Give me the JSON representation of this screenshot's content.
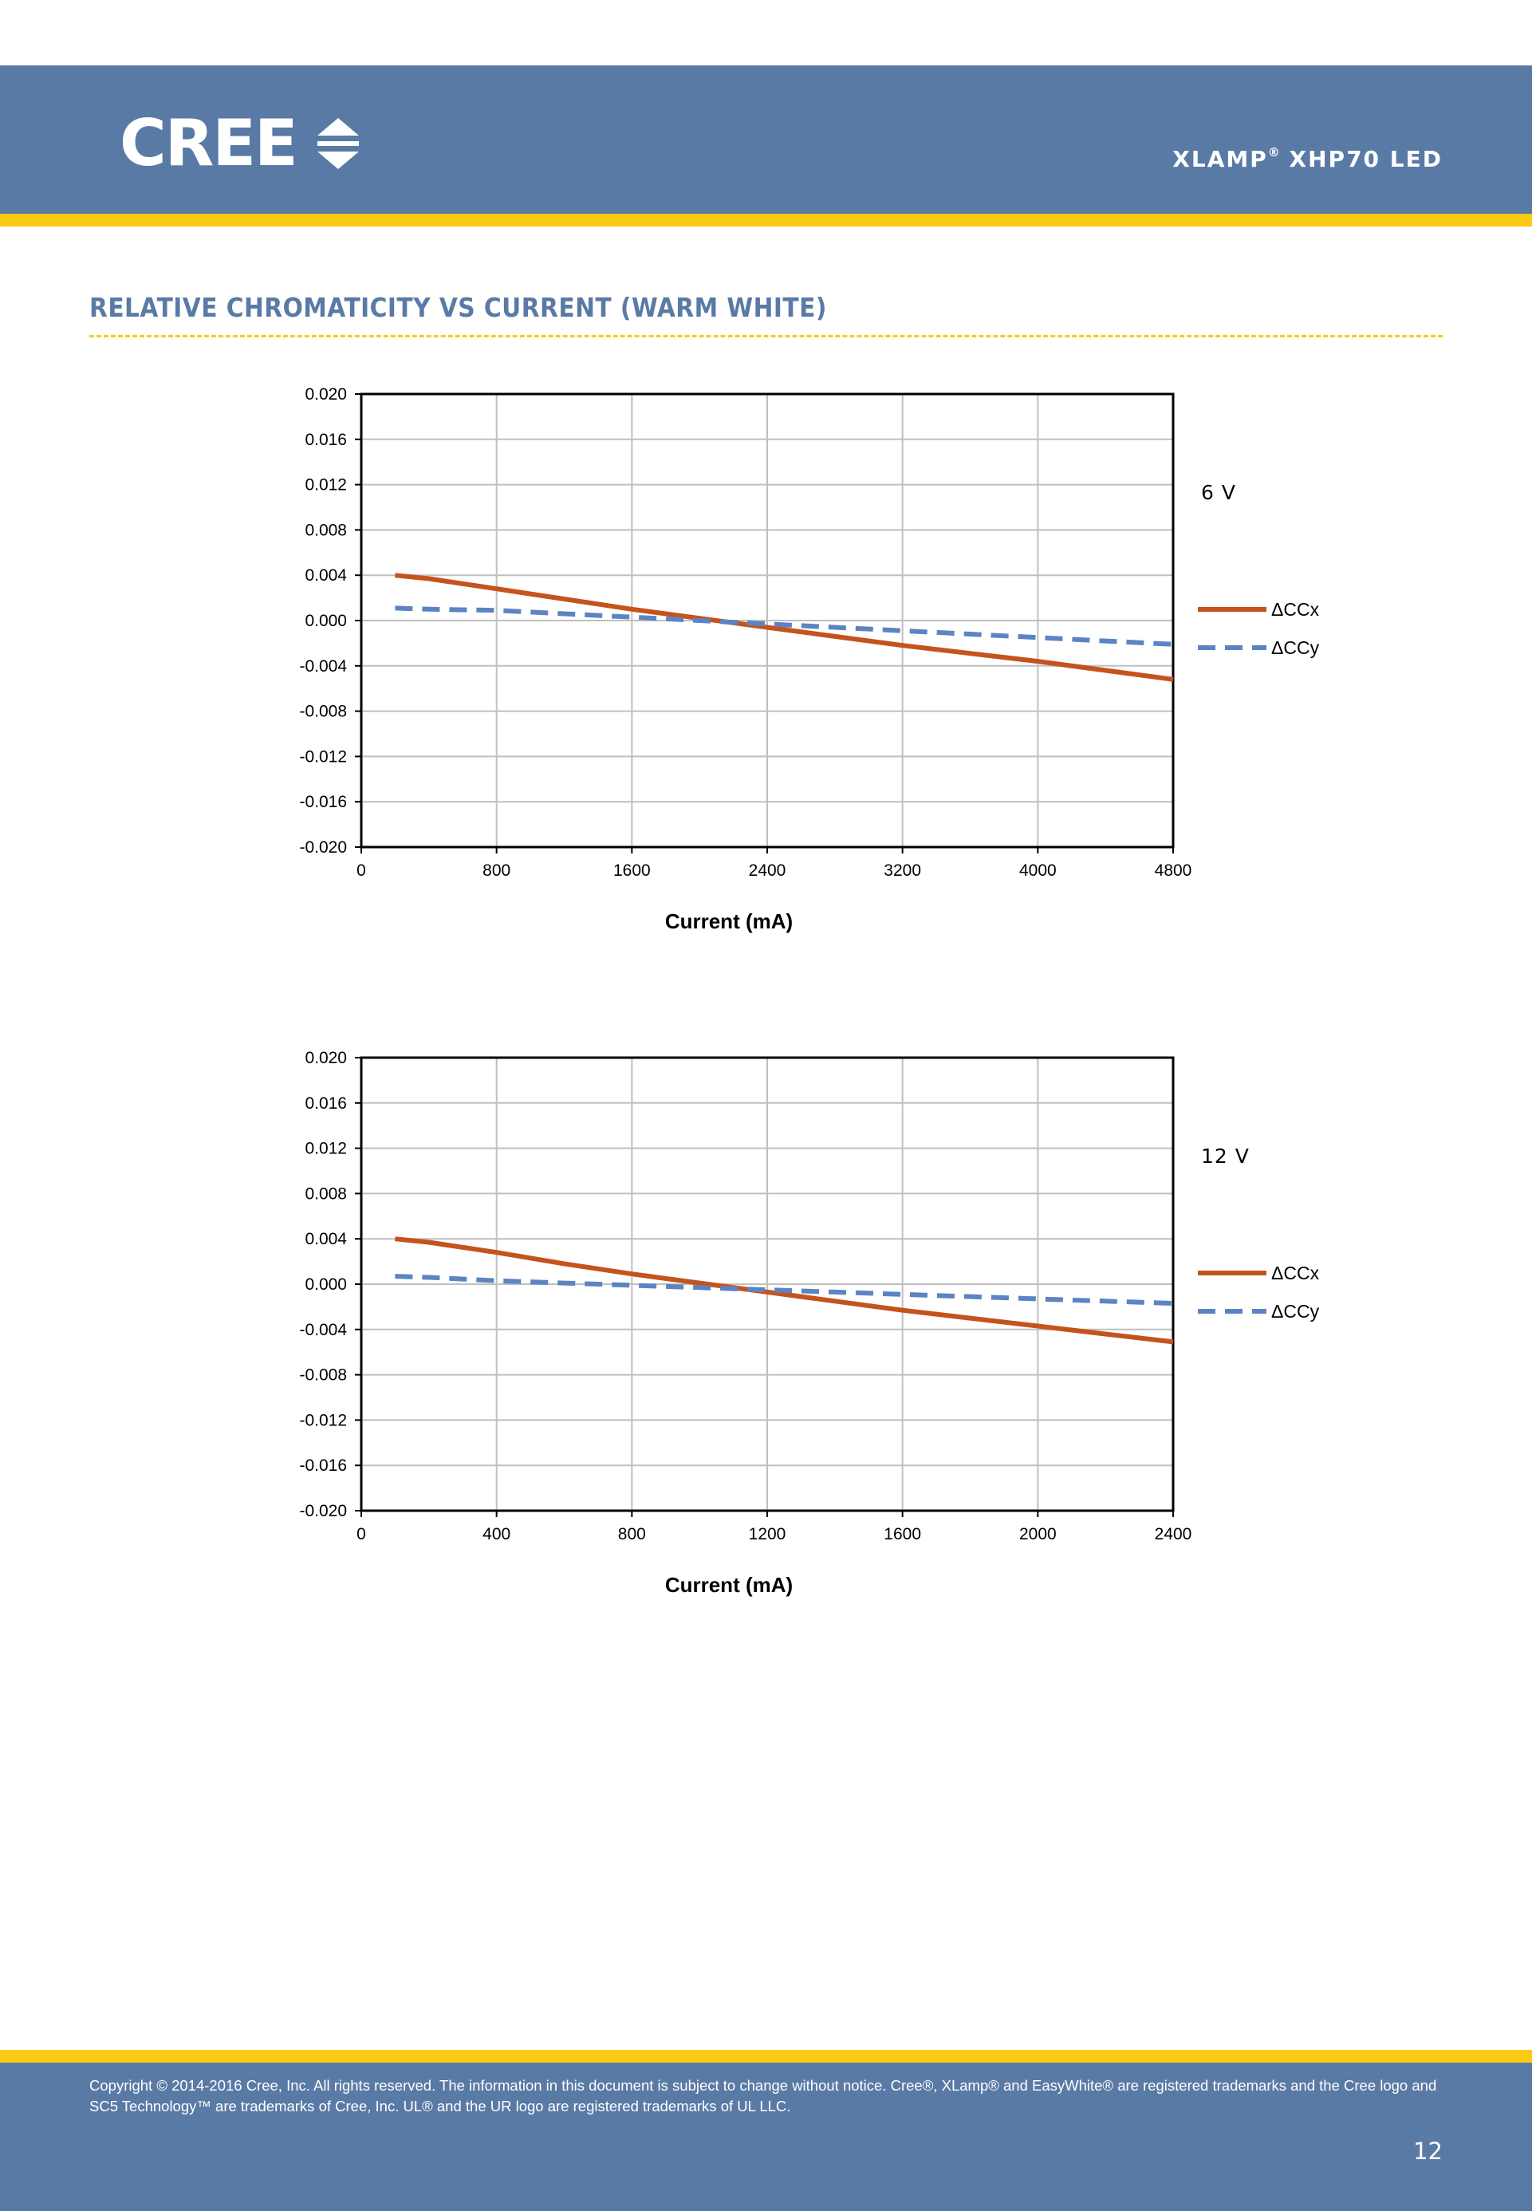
{
  "header": {
    "logo_text": "CREE",
    "product_title": "XLAMP",
    "product_title_reg": "®",
    "product_title_rest": " XHP70 LED"
  },
  "section_title": "RELATIVE CHROMATICITY VS CURRENT (WARM WHITE)",
  "colors": {
    "brand_blue": "#5a7aa6",
    "brand_yellow": "#fcc914",
    "series_ccx": "#c5531d",
    "series_ccy": "#5b84c2"
  },
  "chart_data": [
    {
      "type": "line",
      "title": "",
      "annotation": "6 V",
      "xlabel": "Current (mA)",
      "ylabel": "",
      "xlim": [
        0,
        4800
      ],
      "ylim": [
        -0.02,
        0.02
      ],
      "xticks": [
        "0",
        "800",
        "1600",
        "2400",
        "3200",
        "4000",
        "4800"
      ],
      "yticks": [
        "0.020",
        "0.016",
        "0.012",
        "0.008",
        "0.004",
        "0.000",
        "-0.004",
        "-0.008",
        "-0.012",
        "-0.016",
        "-0.020"
      ],
      "grid": true,
      "legend_position": "right",
      "series": [
        {
          "name": "ΔCCx",
          "style": "solid",
          "x": [
            200,
            400,
            800,
            1200,
            1600,
            2000,
            2400,
            2800,
            3200,
            3600,
            4000,
            4400,
            4800
          ],
          "y": [
            0.004,
            0.0037,
            0.0028,
            0.0019,
            0.001,
            0.0002,
            -0.0006,
            -0.0014,
            -0.0022,
            -0.0029,
            -0.0036,
            -0.0044,
            -0.0052
          ]
        },
        {
          "name": "ΔCCy",
          "style": "dashed",
          "x": [
            200,
            400,
            800,
            1200,
            1600,
            2000,
            2400,
            2800,
            3200,
            3600,
            4000,
            4400,
            4800
          ],
          "y": [
            0.0011,
            0.001,
            0.0009,
            0.0006,
            0.0003,
            0.0,
            -0.0003,
            -0.0006,
            -0.0009,
            -0.0012,
            -0.0015,
            -0.0018,
            -0.0021
          ]
        }
      ]
    },
    {
      "type": "line",
      "title": "",
      "annotation": "12 V",
      "xlabel": "Current (mA)",
      "ylabel": "",
      "xlim": [
        0,
        2400
      ],
      "ylim": [
        -0.02,
        0.02
      ],
      "xticks": [
        "0",
        "400",
        "800",
        "1200",
        "1600",
        "2000",
        "2400"
      ],
      "yticks": [
        "0.020",
        "0.016",
        "0.012",
        "0.008",
        "0.004",
        "0.000",
        "-0.004",
        "-0.008",
        "-0.012",
        "-0.016",
        "-0.020"
      ],
      "grid": true,
      "legend_position": "right",
      "series": [
        {
          "name": "ΔCCx",
          "style": "solid",
          "x": [
            100,
            200,
            400,
            600,
            800,
            1000,
            1200,
            1400,
            1600,
            1800,
            2000,
            2200,
            2400
          ],
          "y": [
            0.004,
            0.0037,
            0.0028,
            0.0018,
            0.0009,
            0.0001,
            -0.0007,
            -0.0015,
            -0.0023,
            -0.003,
            -0.0037,
            -0.0044,
            -0.0051
          ]
        },
        {
          "name": "ΔCCy",
          "style": "dashed",
          "x": [
            100,
            200,
            400,
            600,
            800,
            1000,
            1200,
            1400,
            1600,
            1800,
            2000,
            2200,
            2400
          ],
          "y": [
            0.0007,
            0.0006,
            0.0003,
            0.0001,
            -0.0001,
            -0.0003,
            -0.0005,
            -0.0007,
            -0.0009,
            -0.0011,
            -0.0013,
            -0.0015,
            -0.0017
          ]
        }
      ]
    }
  ],
  "footer": {
    "copyright": "Copyright © 2014-2016 Cree, Inc. All rights reserved. The information in this document is subject to change without notice. Cree®, XLamp® and EasyWhite® are registered trademarks and the Cree logo and SC5 Technology™ are trademarks of Cree, Inc. UL® and the UR logo are registered trademarks of UL LLC.",
    "page_number": "12"
  }
}
